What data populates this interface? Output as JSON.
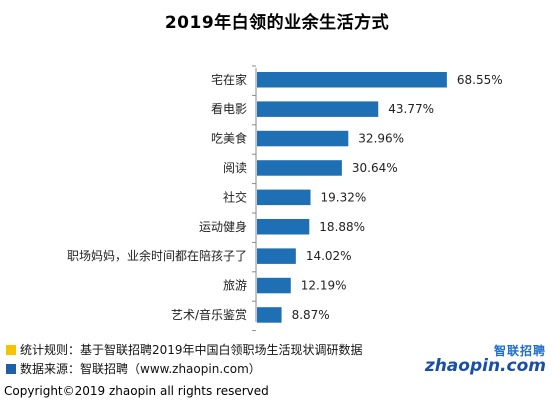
{
  "chart_data": {
    "type": "bar",
    "orientation": "horizontal",
    "title": "2019年白领的业余生活方式",
    "categories": [
      "宅在家",
      "看电影",
      "吃美食",
      "阅读",
      "社交",
      "运动健身",
      "职场妈妈，业余时间都在陪孩子了",
      "旅游",
      "艺术/音乐鉴赏"
    ],
    "values": [
      68.55,
      43.77,
      32.96,
      30.64,
      19.32,
      18.88,
      14.02,
      12.19,
      8.87
    ],
    "value_labels": [
      "68.55%",
      "43.77%",
      "32.96%",
      "30.64%",
      "19.32%",
      "18.88%",
      "14.02%",
      "12.19%",
      "8.87%"
    ],
    "xlim": [
      0,
      100
    ],
    "bar_color": "#1f6fb5",
    "grid": false
  },
  "notes": {
    "rule_label": "统计规则：基于智联招聘2019年中国白领职场生活现状调研数据",
    "rule_color": "#f5c400",
    "source_label": "数据来源：智联招聘（www.zhaopin.com）",
    "source_color": "#1f5fa8"
  },
  "logo": {
    "cn": "智联招聘",
    "en": "zhaopin.com"
  },
  "copyright": "Copyright©2019 zhaopin all rights reserved"
}
